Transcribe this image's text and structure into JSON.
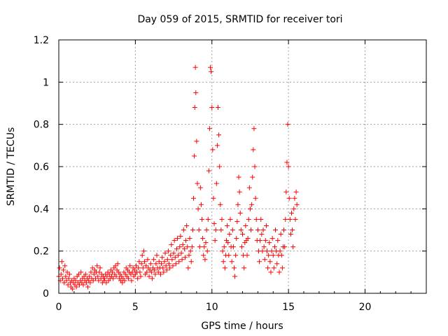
{
  "chart_data": {
    "type": "scatter",
    "title": "Day 059 of 2015, SRMTID for receiver tori",
    "xlabel": "GPS time / hours",
    "ylabel": "SRMTID / TECUs",
    "xlim": [
      0,
      24
    ],
    "ylim": [
      0,
      1.2
    ],
    "xticks": [
      "0",
      "5",
      "10",
      "15",
      "20"
    ],
    "yticks": [
      "0",
      "0.2",
      "0.4",
      "0.6",
      "0.8",
      "1",
      "1.2"
    ],
    "grid": true,
    "marker": "+",
    "series": [
      {
        "name": "SRMTID",
        "color": "#ff0000",
        "points": [
          [
            0.0,
            0.08
          ],
          [
            0.05,
            0.12
          ],
          [
            0.1,
            0.06
          ],
          [
            0.15,
            0.09
          ],
          [
            0.2,
            0.15
          ],
          [
            0.25,
            0.07
          ],
          [
            0.3,
            0.11
          ],
          [
            0.35,
            0.05
          ],
          [
            0.4,
            0.13
          ],
          [
            0.45,
            0.08
          ],
          [
            0.5,
            0.06
          ],
          [
            0.55,
            0.1
          ],
          [
            0.6,
            0.04
          ],
          [
            0.65,
            0.07
          ],
          [
            0.7,
            0.09
          ],
          [
            0.75,
            0.05
          ],
          [
            0.8,
            0.03
          ],
          [
            0.85,
            0.06
          ],
          [
            0.9,
            0.02
          ],
          [
            0.95,
            0.05
          ],
          [
            1.0,
            0.07
          ],
          [
            1.05,
            0.04
          ],
          [
            1.1,
            0.06
          ],
          [
            1.15,
            0.03
          ],
          [
            1.2,
            0.08
          ],
          [
            1.25,
            0.05
          ],
          [
            1.3,
            0.09
          ],
          [
            1.35,
            0.04
          ],
          [
            1.4,
            0.06
          ],
          [
            1.45,
            0.1
          ],
          [
            1.5,
            0.05
          ],
          [
            1.55,
            0.07
          ],
          [
            1.6,
            0.04
          ],
          [
            1.65,
            0.08
          ],
          [
            1.7,
            0.06
          ],
          [
            1.75,
            0.09
          ],
          [
            1.8,
            0.05
          ],
          [
            1.85,
            0.07
          ],
          [
            1.9,
            0.03
          ],
          [
            1.95,
            0.06
          ],
          [
            2.0,
            0.08
          ],
          [
            2.05,
            0.05
          ],
          [
            2.1,
            0.1
          ],
          [
            2.15,
            0.07
          ],
          [
            2.2,
            0.12
          ],
          [
            2.25,
            0.06
          ],
          [
            2.3,
            0.09
          ],
          [
            2.35,
            0.11
          ],
          [
            2.4,
            0.07
          ],
          [
            2.45,
            0.1
          ],
          [
            2.5,
            0.13
          ],
          [
            2.55,
            0.08
          ],
          [
            2.6,
            0.06
          ],
          [
            2.65,
            0.1
          ],
          [
            2.7,
            0.12
          ],
          [
            2.75,
            0.07
          ],
          [
            2.8,
            0.09
          ],
          [
            2.85,
            0.05
          ],
          [
            2.9,
            0.08
          ],
          [
            2.95,
            0.06
          ],
          [
            3.0,
            0.07
          ],
          [
            3.05,
            0.09
          ],
          [
            3.1,
            0.05
          ],
          [
            3.15,
            0.08
          ],
          [
            3.2,
            0.1
          ],
          [
            3.25,
            0.06
          ],
          [
            3.3,
            0.09
          ],
          [
            3.35,
            0.07
          ],
          [
            3.4,
            0.11
          ],
          [
            3.45,
            0.08
          ],
          [
            3.5,
            0.1
          ],
          [
            3.55,
            0.07
          ],
          [
            3.6,
            0.12
          ],
          [
            3.65,
            0.09
          ],
          [
            3.7,
            0.13
          ],
          [
            3.75,
            0.08
          ],
          [
            3.8,
            0.11
          ],
          [
            3.85,
            0.14
          ],
          [
            3.9,
            0.1
          ],
          [
            3.95,
            0.07
          ],
          [
            4.0,
            0.09
          ],
          [
            4.05,
            0.06
          ],
          [
            4.1,
            0.08
          ],
          [
            4.15,
            0.05
          ],
          [
            4.2,
            0.07
          ],
          [
            4.25,
            0.1
          ],
          [
            4.3,
            0.06
          ],
          [
            4.35,
            0.09
          ],
          [
            4.4,
            0.12
          ],
          [
            4.45,
            0.08
          ],
          [
            4.5,
            0.11
          ],
          [
            4.55,
            0.07
          ],
          [
            4.6,
            0.1
          ],
          [
            4.65,
            0.13
          ],
          [
            4.7,
            0.09
          ],
          [
            4.75,
            0.06
          ],
          [
            4.8,
            0.1
          ],
          [
            4.85,
            0.12
          ],
          [
            4.9,
            0.08
          ],
          [
            4.95,
            0.11
          ],
          [
            5.0,
            0.09
          ],
          [
            5.05,
            0.13
          ],
          [
            5.1,
            0.1
          ],
          [
            5.15,
            0.07
          ],
          [
            5.2,
            0.12
          ],
          [
            5.25,
            0.15
          ],
          [
            5.3,
            0.1
          ],
          [
            5.35,
            0.08
          ],
          [
            5.4,
            0.14
          ],
          [
            5.45,
            0.18
          ],
          [
            5.5,
            0.12
          ],
          [
            5.55,
            0.2
          ],
          [
            5.6,
            0.15
          ],
          [
            5.65,
            0.09
          ],
          [
            5.7,
            0.13
          ],
          [
            5.75,
            0.1
          ],
          [
            5.8,
            0.16
          ],
          [
            5.85,
            0.12
          ],
          [
            5.9,
            0.08
          ],
          [
            5.95,
            0.11
          ],
          [
            6.0,
            0.14
          ],
          [
            6.05,
            0.1
          ],
          [
            6.1,
            0.07
          ],
          [
            6.15,
            0.12
          ],
          [
            6.2,
            0.16
          ],
          [
            6.25,
            0.11
          ],
          [
            6.3,
            0.09
          ],
          [
            6.35,
            0.14
          ],
          [
            6.4,
            0.18
          ],
          [
            6.45,
            0.12
          ],
          [
            6.5,
            0.1
          ],
          [
            6.55,
            0.15
          ],
          [
            6.6,
            0.12
          ],
          [
            6.65,
            0.09
          ],
          [
            6.7,
            0.14
          ],
          [
            6.75,
            0.17
          ],
          [
            6.8,
            0.12
          ],
          [
            6.85,
            0.1
          ],
          [
            6.9,
            0.15
          ],
          [
            6.95,
            0.19
          ],
          [
            7.0,
            0.13
          ],
          [
            7.05,
            0.11
          ],
          [
            7.1,
            0.16
          ],
          [
            7.15,
            0.2
          ],
          [
            7.2,
            0.14
          ],
          [
            7.25,
            0.12
          ],
          [
            7.3,
            0.18
          ],
          [
            7.35,
            0.23
          ],
          [
            7.4,
            0.16
          ],
          [
            7.45,
            0.13
          ],
          [
            7.5,
            0.19
          ],
          [
            7.55,
            0.25
          ],
          [
            7.6,
            0.17
          ],
          [
            7.65,
            0.14
          ],
          [
            7.7,
            0.21
          ],
          [
            7.75,
            0.26
          ],
          [
            7.8,
            0.18
          ],
          [
            7.85,
            0.15
          ],
          [
            7.9,
            0.22
          ],
          [
            7.95,
            0.27
          ],
          [
            8.0,
            0.19
          ],
          [
            8.05,
            0.16
          ],
          [
            8.1,
            0.23
          ],
          [
            8.15,
            0.3
          ],
          [
            8.2,
            0.21
          ],
          [
            8.25,
            0.17
          ],
          [
            8.3,
            0.25
          ],
          [
            8.35,
            0.32
          ],
          [
            8.4,
            0.22
          ],
          [
            8.45,
            0.12
          ],
          [
            8.5,
            0.18
          ],
          [
            8.55,
            0.26
          ],
          [
            8.6,
            0.2
          ],
          [
            8.65,
            0.15
          ],
          [
            8.7,
            0.22
          ],
          [
            8.75,
            0.3
          ],
          [
            8.8,
            0.45
          ],
          [
            8.85,
            0.65
          ],
          [
            8.88,
            0.88
          ],
          [
            8.92,
            1.07
          ],
          [
            8.95,
            0.95
          ],
          [
            9.0,
            0.72
          ],
          [
            9.05,
            0.52
          ],
          [
            9.1,
            0.4
          ],
          [
            9.15,
            0.3
          ],
          [
            9.2,
            0.22
          ],
          [
            9.25,
            0.5
          ],
          [
            9.3,
            0.42
          ],
          [
            9.35,
            0.35
          ],
          [
            9.4,
            0.26
          ],
          [
            9.45,
            0.18
          ],
          [
            9.5,
            0.22
          ],
          [
            9.55,
            0.16
          ],
          [
            9.6,
            0.24
          ],
          [
            9.65,
            0.3
          ],
          [
            9.7,
            0.2
          ],
          [
            9.75,
            0.35
          ],
          [
            9.8,
            0.58
          ],
          [
            9.85,
            0.78
          ],
          [
            9.9,
            1.07
          ],
          [
            9.95,
            1.05
          ],
          [
            10.0,
            0.88
          ],
          [
            10.05,
            0.68
          ],
          [
            10.1,
            0.45
          ],
          [
            10.15,
            0.33
          ],
          [
            10.2,
            0.25
          ],
          [
            10.25,
            0.3
          ],
          [
            10.3,
            0.52
          ],
          [
            10.35,
            0.7
          ],
          [
            10.4,
            0.88
          ],
          [
            10.45,
            0.75
          ],
          [
            10.5,
            0.6
          ],
          [
            10.55,
            0.42
          ],
          [
            10.6,
            0.3
          ],
          [
            10.65,
            0.35
          ],
          [
            10.7,
            0.2
          ],
          [
            10.75,
            0.15
          ],
          [
            10.8,
            0.22
          ],
          [
            10.85,
            0.12
          ],
          [
            10.9,
            0.18
          ],
          [
            10.95,
            0.25
          ],
          [
            11.0,
            0.32
          ],
          [
            11.05,
            0.24
          ],
          [
            11.1,
            0.18
          ],
          [
            11.15,
            0.28
          ],
          [
            11.2,
            0.35
          ],
          [
            11.25,
            0.22
          ],
          [
            11.3,
            0.15
          ],
          [
            11.35,
            0.3
          ],
          [
            11.4,
            0.22
          ],
          [
            11.45,
            0.12
          ],
          [
            11.5,
            0.08
          ],
          [
            11.55,
            0.18
          ],
          [
            11.6,
            0.26
          ],
          [
            11.65,
            0.34
          ],
          [
            11.7,
            0.42
          ],
          [
            11.75,
            0.55
          ],
          [
            11.8,
            0.48
          ],
          [
            11.85,
            0.38
          ],
          [
            11.9,
            0.3
          ],
          [
            11.95,
            0.22
          ],
          [
            12.0,
            0.28
          ],
          [
            12.05,
            0.18
          ],
          [
            12.1,
            0.12
          ],
          [
            12.15,
            0.24
          ],
          [
            12.2,
            0.32
          ],
          [
            12.25,
            0.25
          ],
          [
            12.3,
            0.18
          ],
          [
            12.35,
            0.26
          ],
          [
            12.4,
            0.35
          ],
          [
            12.45,
            0.5
          ],
          [
            12.5,
            0.4
          ],
          [
            12.55,
            0.3
          ],
          [
            12.6,
            0.42
          ],
          [
            12.65,
            0.55
          ],
          [
            12.7,
            0.68
          ],
          [
            12.75,
            0.78
          ],
          [
            12.8,
            0.6
          ],
          [
            12.85,
            0.45
          ],
          [
            12.9,
            0.35
          ],
          [
            12.95,
            0.25
          ],
          [
            13.0,
            0.3
          ],
          [
            13.05,
            0.2
          ],
          [
            13.1,
            0.15
          ],
          [
            13.15,
            0.25
          ],
          [
            13.2,
            0.35
          ],
          [
            13.25,
            0.28
          ],
          [
            13.3,
            0.2
          ],
          [
            13.35,
            0.3
          ],
          [
            13.4,
            0.22
          ],
          [
            13.45,
            0.16
          ],
          [
            13.5,
            0.25
          ],
          [
            13.55,
            0.32
          ],
          [
            13.6,
            0.2
          ],
          [
            13.65,
            0.12
          ],
          [
            13.7,
            0.18
          ],
          [
            13.75,
            0.24
          ],
          [
            13.8,
            0.15
          ],
          [
            13.85,
            0.1
          ],
          [
            13.9,
            0.2
          ],
          [
            13.95,
            0.26
          ],
          [
            14.0,
            0.18
          ],
          [
            14.05,
            0.12
          ],
          [
            14.1,
            0.22
          ],
          [
            14.15,
            0.3
          ],
          [
            14.2,
            0.2
          ],
          [
            14.25,
            0.14
          ],
          [
            14.3,
            0.25
          ],
          [
            14.35,
            0.18
          ],
          [
            14.4,
            0.1
          ],
          [
            14.45,
            0.2
          ],
          [
            14.5,
            0.28
          ],
          [
            14.55,
            0.18
          ],
          [
            14.6,
            0.12
          ],
          [
            14.65,
            0.22
          ],
          [
            14.7,
            0.3
          ],
          [
            14.75,
            0.22
          ],
          [
            14.8,
            0.35
          ],
          [
            14.85,
            0.48
          ],
          [
            14.9,
            0.62
          ],
          [
            14.95,
            0.8
          ],
          [
            15.0,
            0.6
          ],
          [
            15.05,
            0.45
          ],
          [
            15.1,
            0.35
          ],
          [
            15.15,
            0.28
          ],
          [
            15.2,
            0.38
          ],
          [
            15.25,
            0.3
          ],
          [
            15.3,
            0.22
          ],
          [
            15.35,
            0.4
          ],
          [
            15.4,
            0.45
          ],
          [
            15.45,
            0.35
          ],
          [
            15.5,
            0.48
          ],
          [
            15.55,
            0.42
          ]
        ]
      }
    ]
  }
}
